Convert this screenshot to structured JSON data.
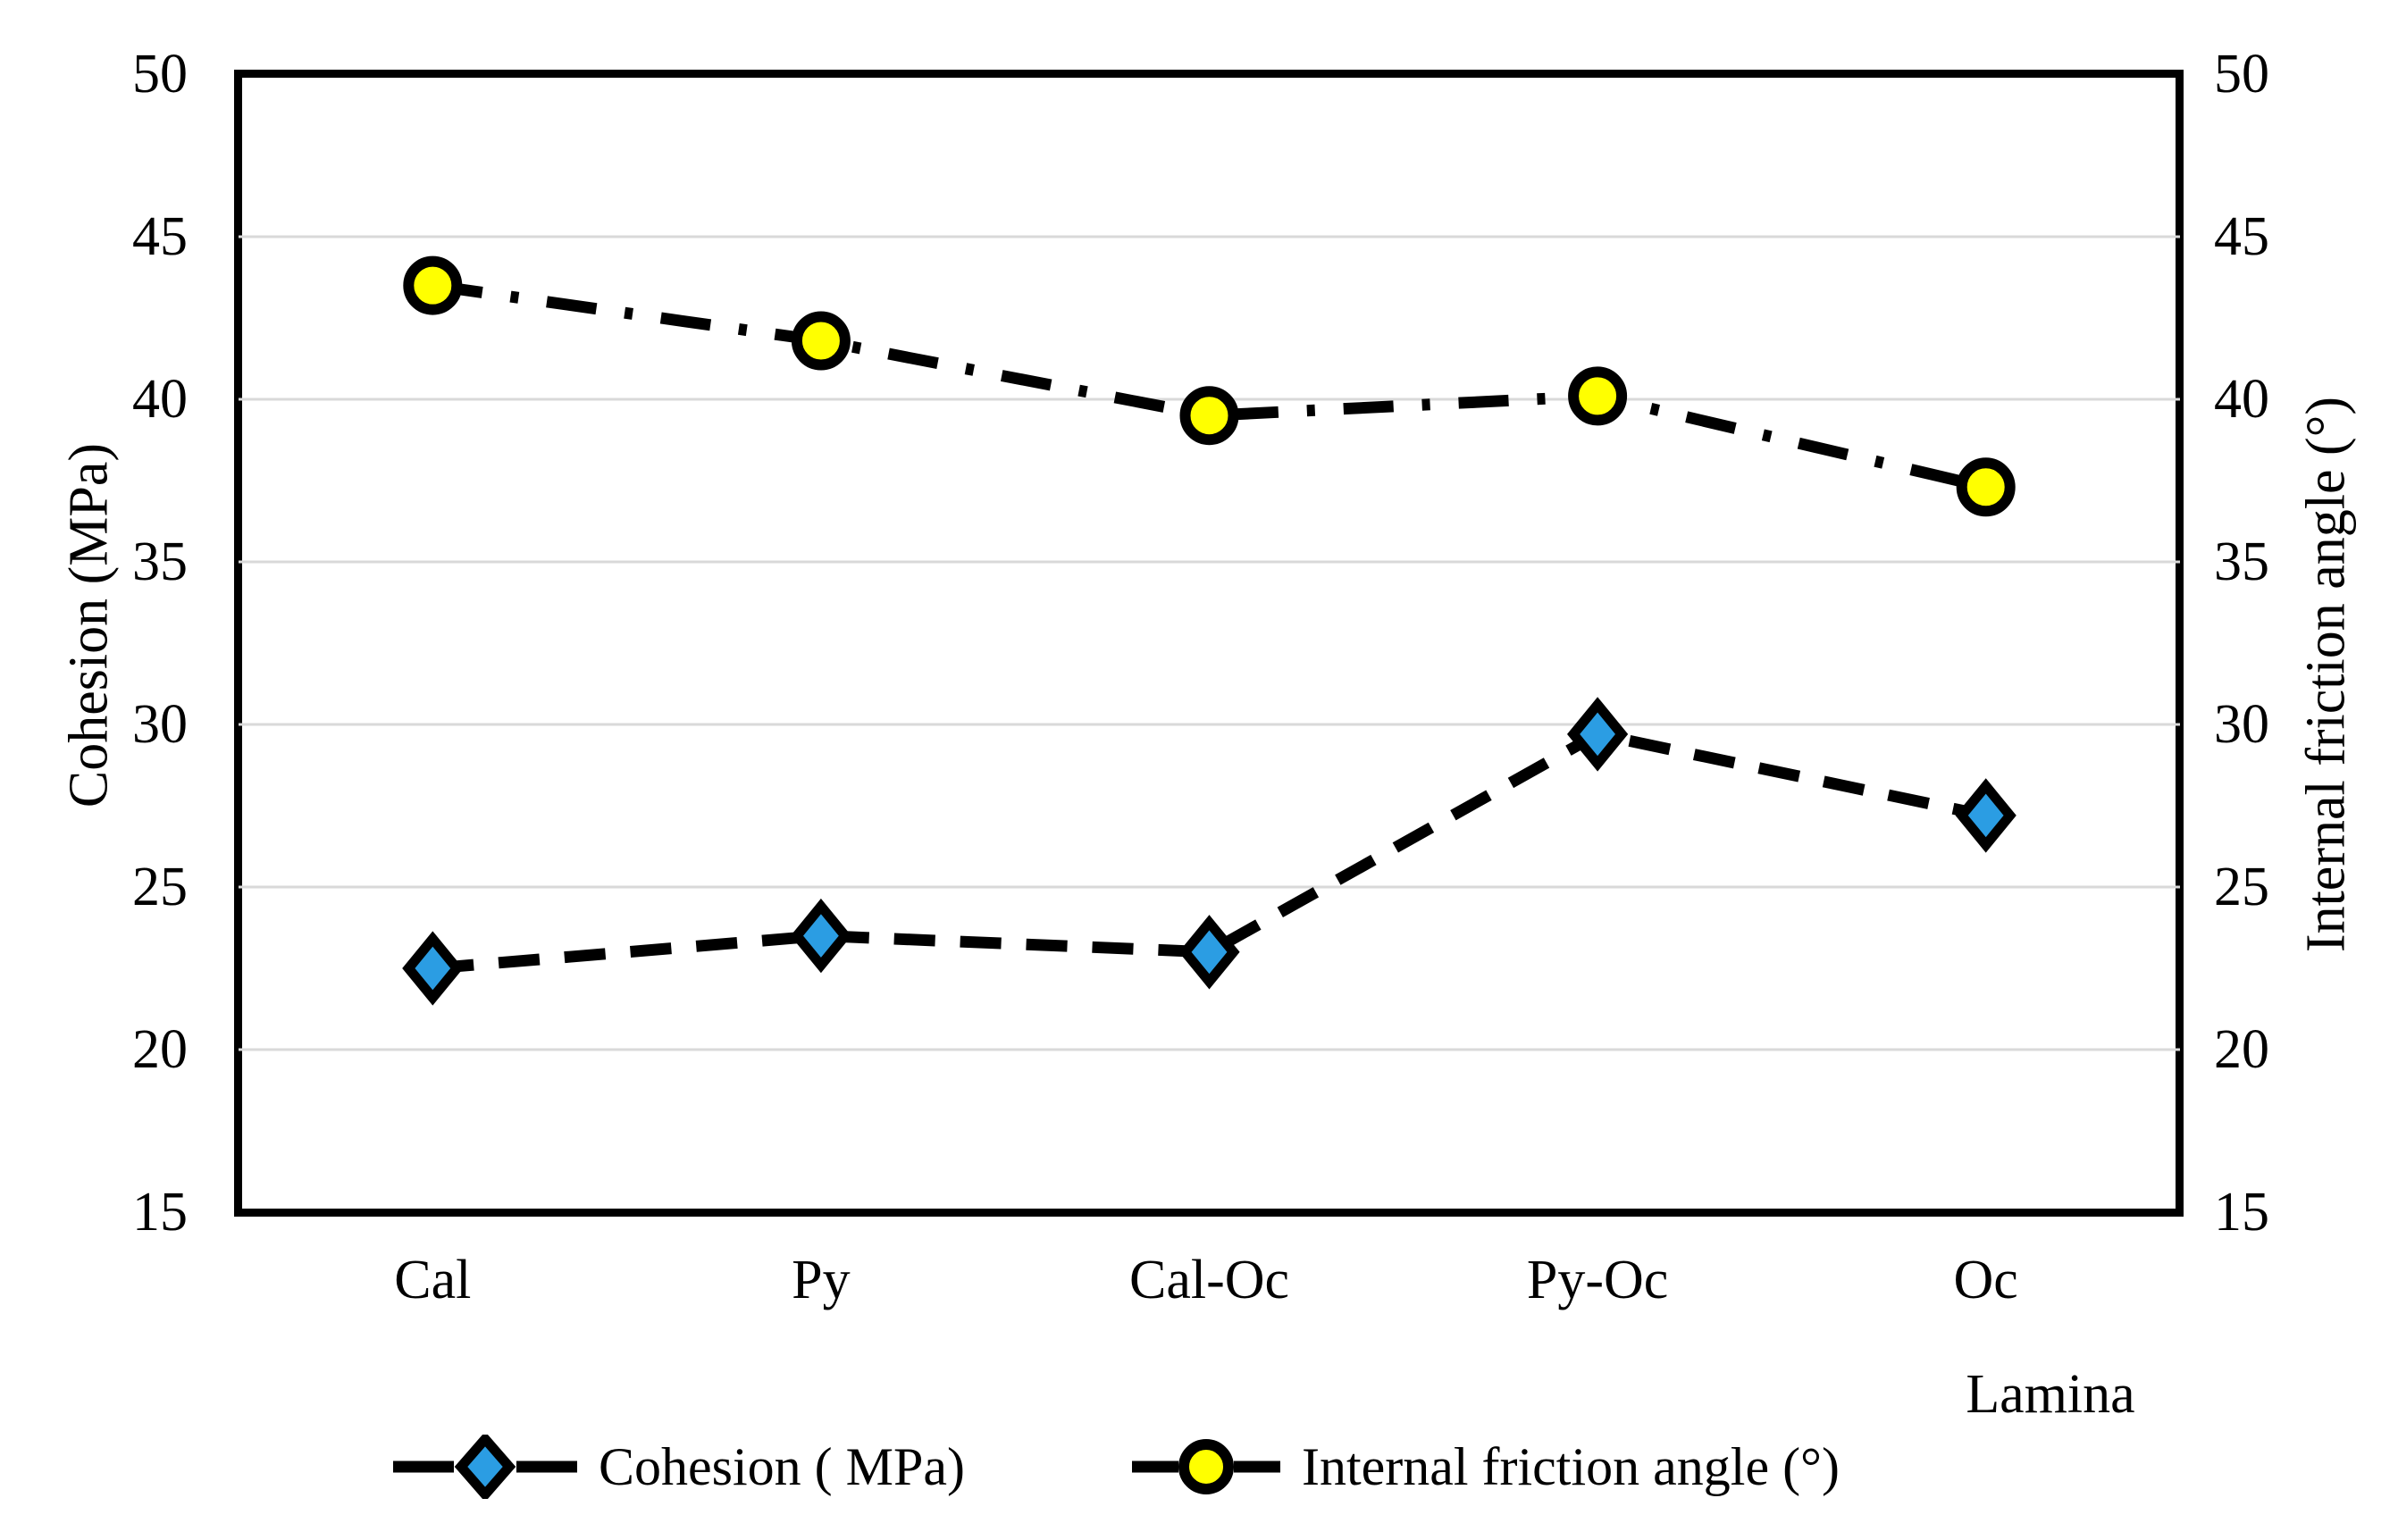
{
  "chart_data": {
    "type": "line",
    "title": "",
    "categories": [
      "Cal",
      "Py",
      "Cal-Oc",
      "Py-Oc",
      "Oc"
    ],
    "x_axis": {
      "label": "Lamina"
    },
    "left_axis": {
      "label": "Cohesion (MPa)",
      "min": 15,
      "max": 50,
      "tick_step": 5,
      "ticks": [
        50,
        45,
        40,
        35,
        30,
        25,
        20,
        15
      ]
    },
    "right_axis": {
      "label": "Internal friction angle (°)",
      "min": 15,
      "max": 50,
      "tick_step": 5,
      "ticks": [
        50,
        45,
        40,
        35,
        30,
        25,
        20,
        15
      ]
    },
    "gridline_values": [
      45,
      40,
      35,
      30,
      25,
      20
    ],
    "grid": true,
    "legend_position": "bottom",
    "series": [
      {
        "name": "Cohesion ( MPa)",
        "axis": "left",
        "values": [
          22.5,
          23.5,
          23.0,
          29.7,
          27.2
        ],
        "marker": "diamond",
        "marker_color": "#2B9DE3",
        "line_color": "#000000",
        "line_style": "dashed"
      },
      {
        "name": "Internal friction angle (°)",
        "axis": "right",
        "values": [
          43.5,
          41.8,
          39.5,
          40.1,
          37.3
        ],
        "marker": "circle",
        "marker_color": "#FFFF00",
        "line_color": "#000000",
        "line_style": "dash-dot"
      }
    ],
    "colors": {
      "background": "#FFFFFF",
      "plot_border": "#000000",
      "grid": "#D9D9D9",
      "text": "#000000"
    }
  }
}
